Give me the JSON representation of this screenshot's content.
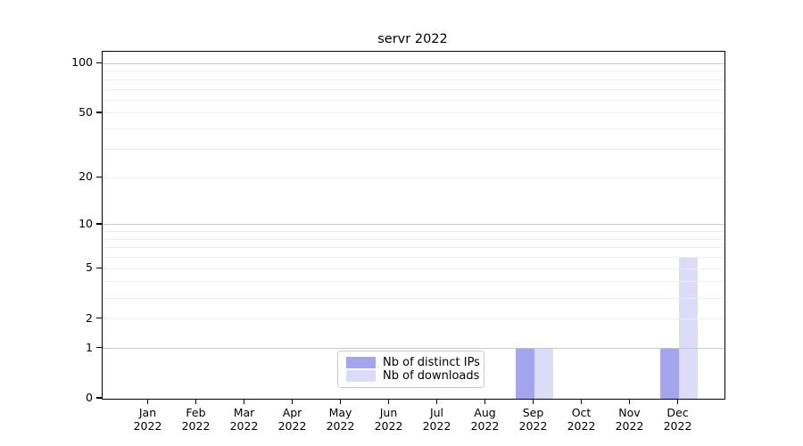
{
  "figure": {
    "title": "servr 2022"
  },
  "chart_data": {
    "type": "bar",
    "title": "servr 2022",
    "categories": [
      "Jan",
      "Feb",
      "Mar",
      "Apr",
      "May",
      "Jun",
      "Jul",
      "Aug",
      "Sep",
      "Oct",
      "Nov",
      "Dec"
    ],
    "category_year": "2022",
    "series": [
      {
        "name": "Nb of distinct IPs",
        "color": "#a5a5ee",
        "values": [
          0,
          0,
          0,
          0,
          0,
          0,
          0,
          0,
          1,
          0,
          0,
          1
        ]
      },
      {
        "name": "Nb of downloads",
        "color": "#dcdcf8",
        "values": [
          0,
          0,
          0,
          0,
          0,
          0,
          0,
          0,
          1,
          0,
          0,
          6
        ]
      }
    ],
    "xlabel": "",
    "ylabel": "",
    "yscale": "log1p",
    "yticks": [
      0,
      1,
      2,
      5,
      10,
      20,
      50,
      100
    ],
    "minor_gridlines": [
      2,
      3,
      4,
      5,
      6,
      7,
      8,
      9,
      20,
      30,
      40,
      50,
      60,
      70,
      80,
      90
    ],
    "major_gridlines": [
      1,
      10,
      100
    ],
    "ylim": [
      0,
      118
    ],
    "grid": "horizontal",
    "legend_position": "lower center",
    "colors": {
      "minor_grid": "#ededed",
      "major_grid": "#c7c7c7",
      "spine": "#000000",
      "background": "#ffffff"
    }
  }
}
